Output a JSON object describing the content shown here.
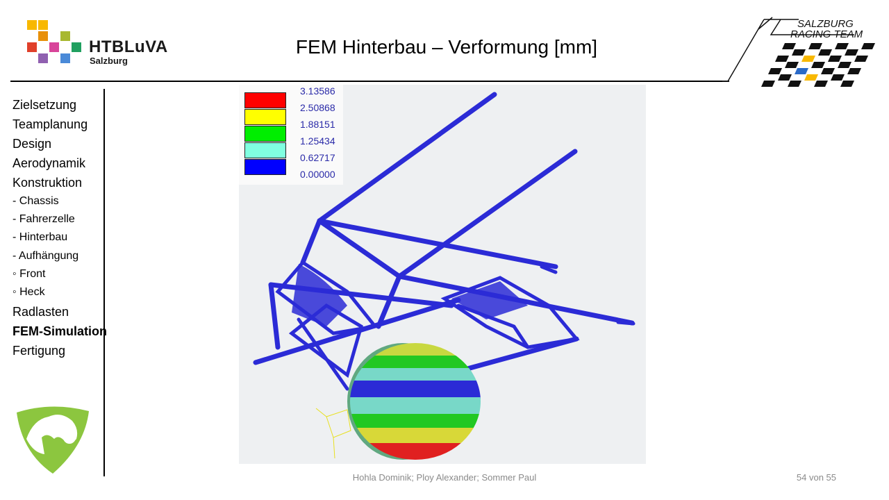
{
  "header": {
    "title": "FEM Hinterbau – Verformung [mm]",
    "logo_left": {
      "name": "HTBLuVA",
      "sub": "Salzburg"
    },
    "logo_right": {
      "line1": "SALZBURG",
      "line2": "RACING TEAM"
    }
  },
  "sidebar": {
    "items": [
      {
        "label": "Zielsetzung",
        "level": 0
      },
      {
        "label": "Teamplanung",
        "level": 0
      },
      {
        "label": "Design",
        "level": 0
      },
      {
        "label": "Aerodynamik",
        "level": 0
      },
      {
        "label": "Konstruktion",
        "level": 0
      },
      {
        "label": "- Chassis",
        "level": 1
      },
      {
        "label": "- Fahrerzelle",
        "level": 1
      },
      {
        "label": "- Hinterbau",
        "level": 1
      },
      {
        "label": "- Aufhängung",
        "level": 1
      },
      {
        "label": "◦ Front",
        "level": 2
      },
      {
        "label": "◦ Heck",
        "level": 2
      },
      {
        "label": "Radlasten",
        "level": 0
      },
      {
        "label": "FEM-Simulation",
        "level": 0,
        "active": true
      },
      {
        "label": "Fertigung",
        "level": 0
      }
    ]
  },
  "fem_legend": {
    "values": [
      "3.13586",
      "2.50868",
      "1.88151",
      "1.25434",
      "0.62717",
      "0.00000"
    ],
    "colors": [
      "#ff0000",
      "#ffff00",
      "#00ee00",
      "#80ffe0",
      "#0000ff"
    ]
  },
  "footer": {
    "authors": "Hohla Dominik; Ploy Alexander; Sommer Paul",
    "page": "54 von 55"
  },
  "colors": {
    "tube": "#2b2bd6",
    "logo_green": "#8cc63f"
  }
}
